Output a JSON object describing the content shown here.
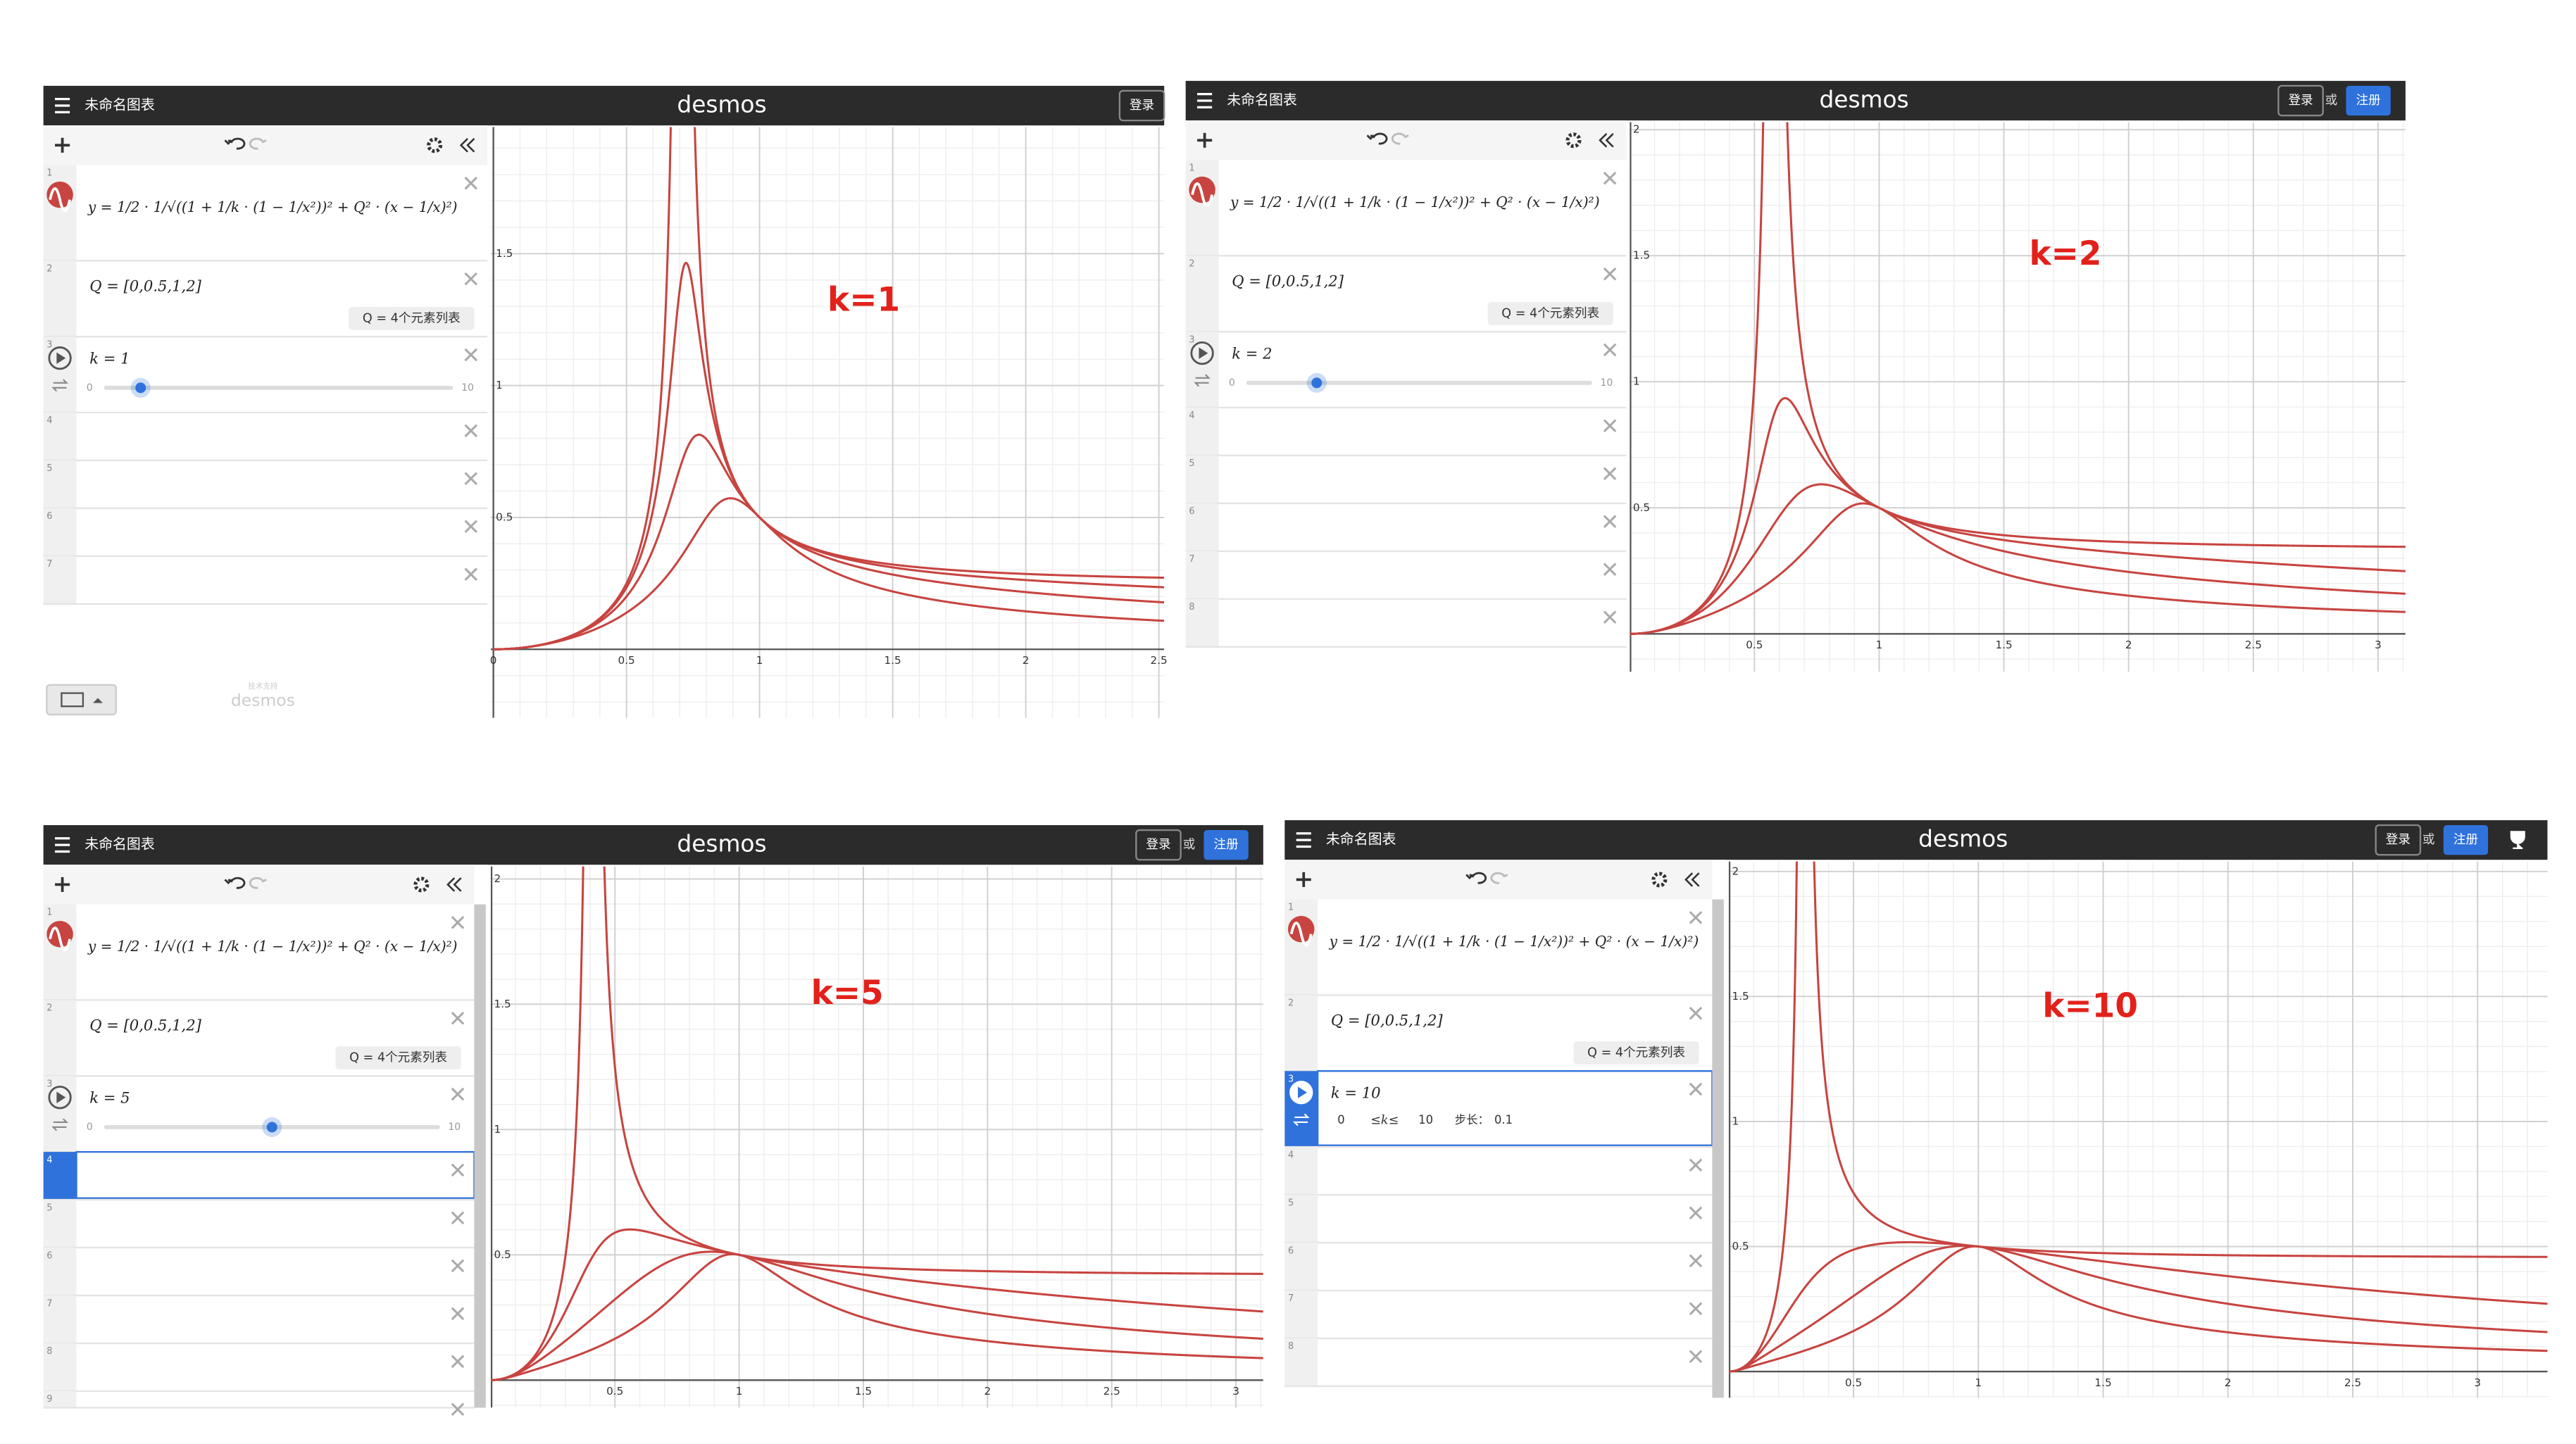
{
  "curve_color": "#c74440",
  "annotation_color": "#e3211b",
  "panels": [
    {
      "header": {
        "title": "未命名图表",
        "logo": "desmos",
        "buttons": [
          "登录"
        ]
      },
      "expressions": [
        {
          "text": "y = 1/2 · 1/√((1 + 1/k · (1 − 1/x²))² + Q² · (x − 1/x)²)"
        },
        {
          "text": "Q = [0,0.5,1,2]",
          "badge": "Q = 4个元素列表"
        },
        {
          "text": "k = 1"
        }
      ],
      "Q": [
        0,
        0.5,
        1,
        2
      ],
      "k": 1,
      "slider": {
        "min": 0,
        "max": 10
      },
      "row_numbers": [
        1,
        2,
        3,
        4,
        5,
        6,
        7
      ],
      "footer": {
        "powered": "技术支持",
        "logo": "desmos"
      },
      "graph": {
        "xlim": [
          -0.01,
          2.52
        ],
        "ylim": [
          -0.26,
          1.98
        ],
        "xticks": [
          0,
          0.5,
          1,
          1.5,
          2,
          2.5
        ],
        "yticks": [
          0.5,
          1,
          1.5
        ]
      },
      "annotation": "k=1"
    },
    {
      "header": {
        "title": "未命名图表",
        "logo": "desmos",
        "buttons": [
          "登录",
          "或",
          "注册"
        ]
      },
      "expressions": [
        {
          "text": "y = 1/2 · 1/√((1 + 1/k · (1 − 1/x²))² + Q² · (x − 1/x)²)"
        },
        {
          "text": "Q = [0,0.5,1,2]",
          "badge": "Q = 4个元素列表"
        },
        {
          "text": "k = 2"
        }
      ],
      "Q": [
        0,
        0.5,
        1,
        2
      ],
      "k": 2,
      "slider": {
        "min": 0,
        "max": 10
      },
      "row_numbers": [
        1,
        2,
        3,
        4,
        5,
        6,
        7,
        8
      ],
      "graph": {
        "xlim": [
          0,
          3.11
        ],
        "ylim": [
          -0.15,
          2.03
        ],
        "xticks": [
          0.5,
          1,
          1.5,
          2,
          2.5,
          3
        ],
        "yticks": [
          0.5,
          1,
          1.5,
          2
        ]
      },
      "annotation": "k=2"
    },
    {
      "header": {
        "title": "未命名图表",
        "logo": "desmos",
        "buttons": [
          "登录",
          "或",
          "注册"
        ]
      },
      "expressions": [
        {
          "text": "y = 1/2 · 1/√((1 + 1/k · (1 − 1/x²))² + Q² · (x − 1/x)²)"
        },
        {
          "text": "Q = [0,0.5,1,2]",
          "badge": "Q = 4个元素列表"
        },
        {
          "text": "k = 5"
        }
      ],
      "Q": [
        0,
        0.5,
        1,
        2
      ],
      "k": 5,
      "slider": {
        "min": 0,
        "max": 10
      },
      "row_numbers": [
        1,
        2,
        3,
        4,
        5,
        6,
        7,
        8,
        9
      ],
      "selected_row": 4,
      "graph": {
        "xlim": [
          0,
          3.11
        ],
        "ylim": [
          -0.11,
          2.05
        ],
        "xticks": [
          0.5,
          1,
          1.5,
          2,
          2.5,
          3
        ],
        "yticks": [
          0.5,
          1,
          1.5,
          2
        ]
      },
      "annotation": "k=5"
    },
    {
      "header": {
        "title": "未命名图表",
        "logo": "desmos",
        "buttons": [
          "登录",
          "或",
          "注册"
        ]
      },
      "expressions": [
        {
          "text": "y = 1/2 · 1/√((1 + 1/k · (1 − 1/x²))² + Q² · (x − 1/x)²)"
        },
        {
          "text": "Q = [0,0.5,1,2]",
          "badge": "Q = 4个元素列表"
        },
        {
          "text": "k = 10"
        }
      ],
      "Q": [
        0,
        0.5,
        1,
        2
      ],
      "k": 10,
      "slider": {
        "min": 0,
        "max": 10,
        "relation": "≤k≤",
        "step_label": "步长：",
        "step": 0.1
      },
      "row_numbers": [
        1,
        2,
        3,
        4,
        5,
        6,
        7,
        8
      ],
      "selected_row": 3,
      "graph": {
        "xlim": [
          0,
          3.28
        ],
        "ylim": [
          -0.105,
          2.04
        ],
        "xticks": [
          0.5,
          1,
          1.5,
          2,
          2.5,
          3
        ],
        "yticks": [
          0.5,
          1,
          1.5,
          2
        ]
      },
      "annotation": "k=10"
    }
  ]
}
